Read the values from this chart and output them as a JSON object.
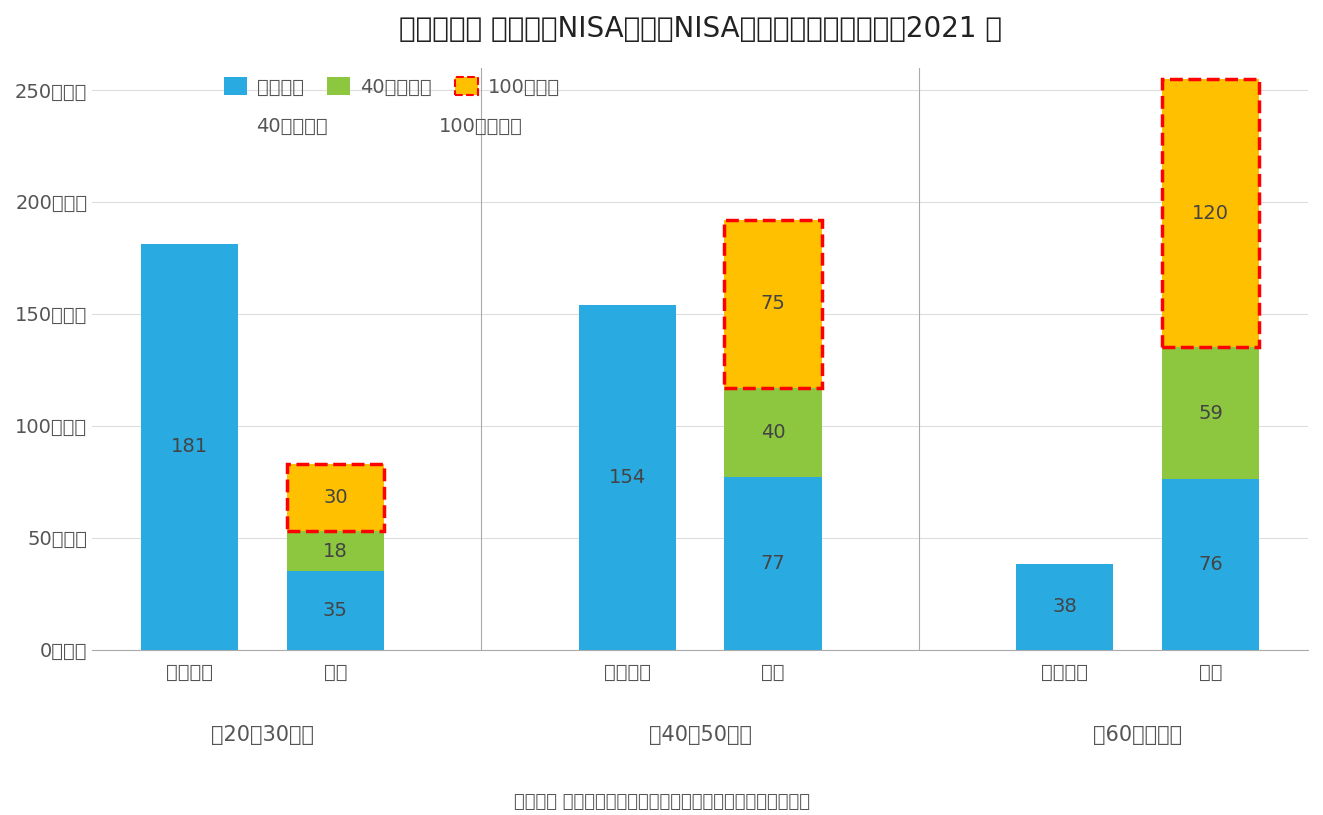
{
  "title": "》図表２》 つみたてNISAと一舮NISAの買付額別の口座数：2021 年",
  "footnote": "（資料） 金融庁公表資料より作成。買付があった口座のみ。",
  "groups": [
    "Ｃ20・30歳代",
    "Ｃ40・50歳代",
    "Ｃ60歳代以上"
  ],
  "bar_labels": [
    "つみたて",
    "一舮"
  ],
  "legend_label_blue_line1": "０円超、",
  "legend_label_blue_line2": "40万円以下",
  "legend_label_green_line1": "40万円超、",
  "legend_label_green_line2": "100万円以下",
  "legend_label_orange": "100万円超",
  "colors": [
    "#29ABE2",
    "#8DC63F",
    "#FFC000"
  ],
  "data": {
    "tsumitate": [
      181,
      154,
      38
    ],
    "ippan_blue": [
      35,
      77,
      76
    ],
    "ippan_green": [
      18,
      40,
      59
    ],
    "ippan_orange": [
      30,
      75,
      120
    ]
  },
  "ylim": [
    0,
    260
  ],
  "yticks": [
    0,
    50,
    100,
    150,
    200,
    250
  ],
  "ytick_labels": [
    "0万口座",
    "50万口座",
    "100万口座",
    "150万口座",
    "200万口座",
    "250万口座"
  ],
  "background_color": "#FFFFFF",
  "title_fontsize": 20,
  "tick_fontsize": 14,
  "label_fontsize": 14,
  "bar_value_fontsize": 14,
  "legend_fontsize": 14,
  "group_label_fontsize": 15
}
